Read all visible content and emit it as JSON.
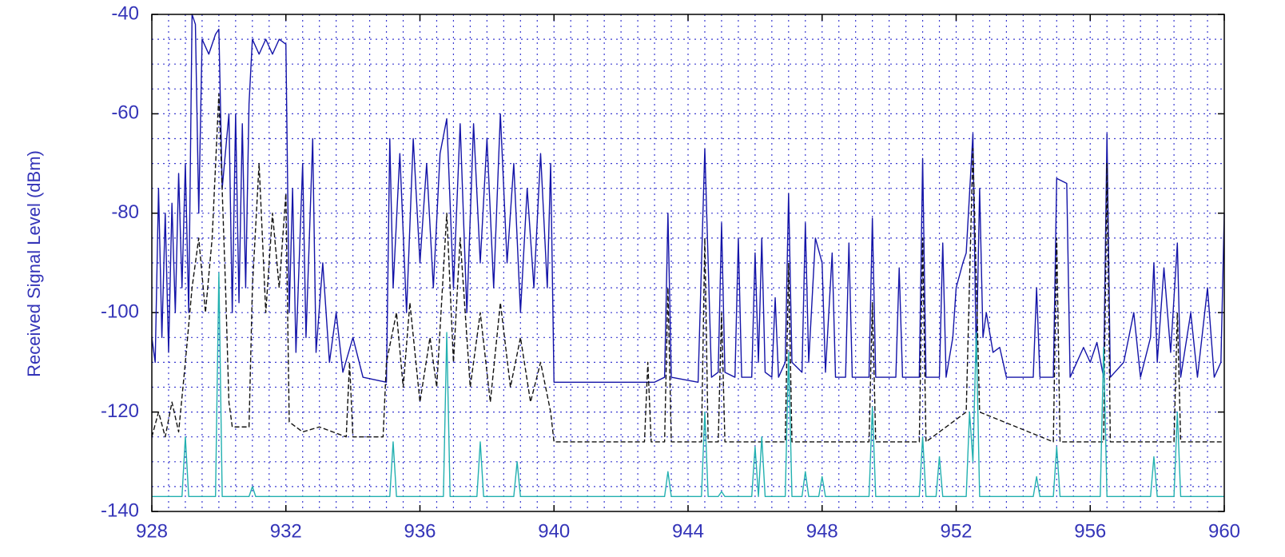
{
  "chart_data": {
    "type": "line",
    "ylabel": "Received Signal Level (dBm)",
    "xlim": [
      928,
      960
    ],
    "ylim": [
      -140,
      -40
    ],
    "xticks": [
      928,
      932,
      936,
      940,
      944,
      948,
      952,
      956,
      960
    ],
    "yticks": [
      -40,
      -60,
      -80,
      -100,
      -120,
      -140
    ],
    "grid": true,
    "xgrid_step": 0.5,
    "ygrid_step": 5,
    "grid_color": "#3b3bd0",
    "series": [
      {
        "color": "#1414a8",
        "dash": "none",
        "x": [
          928.0,
          928.1,
          928.2,
          928.3,
          928.4,
          928.5,
          928.6,
          928.7,
          928.8,
          928.9,
          929.0,
          929.1,
          929.2,
          929.3,
          929.4,
          929.5,
          929.7,
          929.9,
          930.0,
          930.1,
          930.3,
          930.4,
          930.5,
          930.6,
          930.7,
          930.8,
          930.9,
          931.0,
          931.2,
          931.4,
          931.6,
          931.8,
          932.0,
          932.1,
          932.2,
          932.3,
          932.5,
          932.6,
          932.8,
          932.9,
          933.1,
          933.3,
          933.5,
          933.7,
          934.0,
          934.3,
          935.0,
          935.1,
          935.2,
          935.4,
          935.6,
          935.8,
          936.0,
          936.2,
          936.4,
          936.6,
          936.8,
          937.0,
          937.2,
          937.4,
          937.6,
          937.8,
          938.0,
          938.2,
          938.4,
          938.6,
          938.8,
          939.0,
          939.2,
          939.4,
          939.6,
          939.8,
          939.9,
          940.0,
          943.0,
          943.3,
          943.4,
          943.5,
          944.3,
          944.5,
          944.7,
          944.9,
          945.0,
          945.1,
          945.4,
          945.5,
          945.6,
          945.9,
          946.0,
          946.1,
          946.2,
          946.3,
          946.5,
          946.6,
          946.7,
          946.9,
          947.0,
          947.1,
          947.4,
          947.5,
          947.6,
          947.8,
          948.0,
          948.1,
          948.3,
          948.4,
          948.7,
          948.8,
          948.9,
          949.4,
          949.5,
          949.6,
          950.2,
          950.3,
          950.4,
          950.9,
          951.0,
          951.1,
          951.5,
          951.6,
          951.7,
          951.9,
          952.0,
          952.2,
          952.3,
          952.5,
          952.6,
          952.7,
          952.8,
          952.9,
          953.1,
          953.3,
          953.5,
          954.3,
          954.4,
          954.5,
          954.9,
          955.0,
          955.3,
          955.4,
          955.8,
          956.0,
          956.2,
          956.4,
          956.5,
          956.6,
          957.0,
          957.3,
          957.5,
          957.8,
          957.9,
          958.0,
          958.2,
          958.4,
          958.6,
          958.7,
          959.0,
          959.2,
          959.5,
          959.7,
          959.9,
          960.0
        ],
        "values": [
          -105,
          -110,
          -75,
          -105,
          -80,
          -108,
          -78,
          -100,
          -72,
          -95,
          -70,
          -100,
          -40,
          -42,
          -80,
          -45,
          -48,
          -44,
          -43,
          -75,
          -60,
          -100,
          -60,
          -98,
          -62,
          -95,
          -58,
          -45,
          -48,
          -45,
          -48,
          -45,
          -46,
          -100,
          -75,
          -108,
          -70,
          -105,
          -65,
          -108,
          -90,
          -110,
          -100,
          -112,
          -105,
          -113,
          -114,
          -65,
          -95,
          -68,
          -100,
          -65,
          -90,
          -70,
          -95,
          -68,
          -61,
          -95,
          -62,
          -100,
          -62,
          -90,
          -65,
          -95,
          -60,
          -90,
          -70,
          -100,
          -75,
          -95,
          -68,
          -95,
          -70,
          -114,
          -114,
          -113,
          -80,
          -113,
          -114,
          -67,
          -113,
          -112,
          -82,
          -112,
          -113,
          -85,
          -113,
          -113,
          -88,
          -110,
          -85,
          -112,
          -113,
          -97,
          -113,
          -110,
          -76,
          -110,
          -112,
          -82,
          -110,
          -85,
          -90,
          -112,
          -88,
          -113,
          -113,
          -86,
          -113,
          -113,
          -81,
          -113,
          -113,
          -91,
          -113,
          -113,
          -69,
          -113,
          -113,
          -86,
          -113,
          -105,
          -95,
          -90,
          -88,
          -64,
          -110,
          -75,
          -105,
          -100,
          -108,
          -107,
          -113,
          -113,
          -95,
          -113,
          -113,
          -73,
          -74,
          -113,
          -107,
          -110,
          -106,
          -113,
          -64,
          -113,
          -110,
          -100,
          -113,
          -105,
          -90,
          -110,
          -91,
          -108,
          -86,
          -113,
          -100,
          -113,
          -95,
          -113,
          -110,
          -80
        ]
      },
      {
        "color": "#111111",
        "dash": "6,3",
        "x": [
          928.0,
          928.2,
          928.4,
          928.6,
          928.8,
          929.0,
          929.2,
          929.4,
          929.6,
          929.8,
          930.0,
          930.2,
          930.3,
          930.4,
          930.9,
          931.0,
          931.2,
          931.4,
          931.6,
          931.8,
          932.0,
          932.1,
          932.5,
          933.0,
          933.8,
          933.9,
          934.0,
          934.9,
          935.0,
          935.3,
          935.5,
          935.7,
          936.0,
          936.3,
          936.5,
          936.8,
          937.0,
          937.2,
          937.5,
          937.8,
          938.1,
          938.4,
          938.7,
          939.0,
          939.3,
          939.6,
          939.9,
          940.0,
          942.7,
          942.8,
          942.9,
          943.3,
          943.4,
          943.5,
          944.4,
          944.5,
          944.6,
          944.9,
          945.0,
          945.1,
          946.9,
          947.0,
          947.1,
          949.4,
          949.5,
          949.6,
          950.9,
          951.0,
          951.1,
          952.3,
          952.5,
          952.7,
          954.9,
          955.0,
          955.1,
          956.4,
          956.5,
          956.6,
          958.5,
          958.6,
          958.7,
          960.0
        ],
        "values": [
          -125,
          -120,
          -125,
          -118,
          -124,
          -110,
          -95,
          -85,
          -100,
          -85,
          -56,
          -95,
          -118,
          -123,
          -123,
          -95,
          -70,
          -100,
          -80,
          -95,
          -76,
          -122,
          -124,
          -123,
          -125,
          -110,
          -125,
          -125,
          -110,
          -100,
          -115,
          -98,
          -118,
          -105,
          -115,
          -80,
          -110,
          -85,
          -115,
          -100,
          -118,
          -98,
          -115,
          -105,
          -118,
          -110,
          -120,
          -126,
          -126,
          -110,
          -126,
          -126,
          -95,
          -126,
          -126,
          -85,
          -126,
          -126,
          -100,
          -126,
          -126,
          -90,
          -126,
          -126,
          -98,
          -126,
          -126,
          -85,
          -126,
          -120,
          -67,
          -120,
          -126,
          -85,
          -126,
          -126,
          -70,
          -126,
          -126,
          -100,
          -126,
          -126
        ]
      },
      {
        "color": "#22b0b0",
        "dash": "none",
        "x": [
          928.0,
          928.9,
          929.0,
          929.1,
          929.9,
          930.0,
          930.1,
          930.9,
          931.0,
          931.1,
          935.1,
          935.2,
          935.3,
          936.7,
          936.8,
          936.9,
          937.7,
          937.8,
          937.9,
          938.8,
          938.9,
          939.0,
          943.3,
          943.4,
          943.5,
          944.4,
          944.5,
          944.6,
          944.9,
          945.0,
          945.1,
          945.9,
          946.0,
          946.1,
          946.2,
          946.3,
          946.9,
          947.0,
          947.1,
          947.4,
          947.5,
          947.6,
          947.9,
          948.0,
          948.1,
          949.4,
          949.5,
          949.6,
          950.9,
          951.0,
          951.1,
          951.4,
          951.5,
          951.6,
          952.3,
          952.4,
          952.5,
          952.6,
          952.7,
          954.3,
          954.4,
          954.5,
          954.9,
          955.0,
          955.1,
          956.3,
          956.4,
          956.5,
          957.8,
          957.9,
          958.0,
          958.5,
          958.6,
          958.7,
          960.0
        ],
        "values": [
          -137,
          -137,
          -125,
          -137,
          -137,
          -92,
          -137,
          -137,
          -135,
          -137,
          -137,
          -126,
          -137,
          -137,
          -104,
          -137,
          -137,
          -126,
          -137,
          -137,
          -130,
          -137,
          -137,
          -132,
          -137,
          -137,
          -120,
          -137,
          -137,
          -136,
          -137,
          -137,
          -127,
          -137,
          -125,
          -137,
          -137,
          -108,
          -137,
          -137,
          -132,
          -137,
          -137,
          -133,
          -137,
          -137,
          -119,
          -137,
          -137,
          -125,
          -137,
          -137,
          -129,
          -137,
          -137,
          -120,
          -130,
          -104,
          -137,
          -137,
          -133,
          -137,
          -137,
          -127,
          -137,
          -137,
          -107,
          -137,
          -137,
          -129,
          -137,
          -137,
          -120,
          -137,
          -137
        ]
      }
    ]
  }
}
